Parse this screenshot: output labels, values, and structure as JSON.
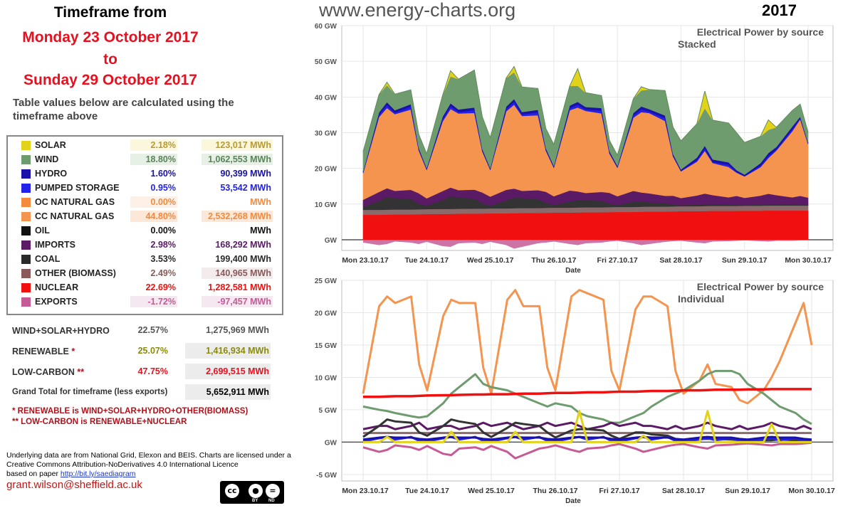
{
  "header": {
    "timeframe_label": "Timeframe from",
    "start_date": "Monday 23 October 2017",
    "to_label": "to",
    "end_date": "Sunday 29 October 2017",
    "subtitle": "Table values below are calculated using the timeframe above",
    "website": "www.energy-charts.org",
    "year": "2017"
  },
  "legend": [
    {
      "name": "SOLAR",
      "pct": "2.18%",
      "mwh": "123,017 MWh",
      "color": "#e3d21a",
      "pct_color": "#b89a30",
      "pct_bg": "#fbf7dd",
      "mwh_color": "#b89a30",
      "mwh_bg": "#fbf7dd"
    },
    {
      "name": "WIND",
      "pct": "18.80%",
      "mwh": "1,062,553 MWh",
      "color": "#6e9c6f",
      "pct_color": "#5a845b",
      "pct_bg": "#e6f0e4",
      "mwh_color": "#5a845b",
      "mwh_bg": "#e6f0e4"
    },
    {
      "name": "HYDRO",
      "pct": "1.60%",
      "mwh": "90,399 MWh",
      "color": "#1a12a8",
      "pct_color": "#1a12a8",
      "pct_bg": "#ffffff",
      "mwh_color": "#1a12a8",
      "mwh_bg": "#ffffff"
    },
    {
      "name": "PUMPED STORAGE",
      "pct": "0.95%",
      "mwh": "53,542 MWh",
      "color": "#2222e8",
      "pct_color": "#2222e8",
      "pct_bg": "#ffffff",
      "mwh_color": "#2222e8",
      "mwh_bg": "#ffffff"
    },
    {
      "name": "OC NATURAL GAS",
      "pct": "0.00%",
      "mwh": "MWh",
      "color": "#f38a3c",
      "pct_color": "#f38a3c",
      "pct_bg": "#fdf0e6",
      "mwh_color": "#f38a3c",
      "mwh_bg": "#ffffff"
    },
    {
      "name": "CC NATURAL GAS",
      "pct": "44.80%",
      "mwh": "2,532,268 MWh",
      "color": "#f5944e",
      "pct_color": "#f38a3c",
      "pct_bg": "#fde7d6",
      "mwh_color": "#f38a3c",
      "mwh_bg": "#fde7d6"
    },
    {
      "name": "OIL",
      "pct": "0.00%",
      "mwh": "MWh",
      "color": "#111111",
      "pct_color": "#111111",
      "pct_bg": "#ffffff",
      "mwh_color": "#111111",
      "mwh_bg": "#ffffff"
    },
    {
      "name": "IMPORTS",
      "pct": "2.98%",
      "mwh": "168,292 MWh",
      "color": "#5a1a66",
      "pct_color": "#5a1a66",
      "pct_bg": "#ffffff",
      "mwh_color": "#5a1a66",
      "mwh_bg": "#ffffff"
    },
    {
      "name": "COAL",
      "pct": "3.53%",
      "mwh": "199,400 MWh",
      "color": "#2a2a2a",
      "pct_color": "#2a2a2a",
      "pct_bg": "#ffffff",
      "mwh_color": "#2a2a2a",
      "mwh_bg": "#ffffff"
    },
    {
      "name": "OTHER (BIOMASS)",
      "pct": "2.49%",
      "mwh": "140,965 MWh",
      "color": "#8a5a5a",
      "pct_color": "#8a5a5a",
      "pct_bg": "#ffffff",
      "mwh_color": "#8a5a5a",
      "mwh_bg": "#f3ecec"
    },
    {
      "name": "NUCLEAR",
      "pct": "22.69%",
      "mwh": "1,282,581 MWh",
      "color": "#f01010",
      "pct_color": "#f01010",
      "pct_bg": "#ffffff",
      "mwh_color": "#f01010",
      "mwh_bg": "#ffffff"
    },
    {
      "name": "EXPORTS",
      "pct": "-1.72%",
      "mwh": "-97,457 MWh",
      "color": "#c65a96",
      "pct_color": "#c65a96",
      "pct_bg": "#f6e8f0",
      "mwh_color": "#c65a96",
      "mwh_bg": "#f6e8f0"
    }
  ],
  "summary": [
    {
      "name": "WIND+SOLAR+HYDRO",
      "star": "",
      "pct": "22.57%",
      "mwh": "1,275,969 MWh",
      "pct_color": "#555555",
      "mwh_color": "#555555"
    },
    {
      "name": "RENEWABLE",
      "star": "*",
      "pct": "25.07%",
      "mwh": "1,416,934 MWh",
      "pct_color": "#8a8a10",
      "mwh_color": "#8a8a10"
    },
    {
      "name": "LOW-CARBON",
      "star": "**",
      "pct": "47.75%",
      "mwh": "2,699,515 MWh",
      "pct_color": "#e8101e",
      "mwh_color": "#e8101e"
    },
    {
      "name": "Grand Total for timeframe (less exports)",
      "star": "",
      "pct": "",
      "mwh": "5,652,911 MWh",
      "pct_color": "#000000",
      "mwh_color": "#000000"
    }
  ],
  "notes": {
    "renewable": "* RENEWABLE is WIND+SOLAR+HYDRO+OTHER(BIOMASS)",
    "low_carbon": "** LOW-CARBON is RENEWABLE+NUCLEAR"
  },
  "credits": {
    "line1": "Underlying data are from National Grid, Elexon and BEIS. Charts are licensed under a",
    "line2": "Creative Commons Attribution-NoDerivatives 4.0 International Licence",
    "line3_prefix": "based on paper ",
    "link": "http://bit.ly/saediagram",
    "email": "grant.wilson@sheffield.ac.uk",
    "cc_by": "BY",
    "cc_nd": "ND"
  },
  "chart_data": [
    {
      "type": "area",
      "title": "Electrical Power by source",
      "subtitle": "Stacked",
      "xlabel": "Date",
      "ylabel": "",
      "ylim": [
        -3,
        60
      ],
      "yticks": [
        0,
        10,
        20,
        30,
        40,
        50,
        60
      ],
      "ytick_labels": [
        "GW",
        "10 GW",
        "20 GW",
        "30 GW",
        "40 GW",
        "50 GW",
        "60 GW"
      ],
      "x_range_days": [
        0,
        7
      ],
      "xticks": [
        "Mon 23.10.17",
        "Tue 24.10.17",
        "Wed 25.10.17",
        "Thu 26.10.17",
        "Fri 27.10.17",
        "Sat 28.10.17",
        "Sun 29.10.17",
        "Mon 30.10.17"
      ],
      "stack_order": [
        "NUCLEAR",
        "OTHER (BIOMASS)",
        "COAL",
        "IMPORTS",
        "CC NATURAL GAS",
        "PUMPED STORAGE",
        "HYDRO",
        "WIND",
        "SOLAR"
      ],
      "negative_series": [
        "EXPORTS"
      ]
    },
    {
      "type": "line",
      "title": "Electrical Power by source",
      "subtitle": "Individual",
      "xlabel": "Date",
      "ylabel": "",
      "ylim": [
        -6,
        25
      ],
      "yticks": [
        -5,
        0,
        5,
        10,
        15,
        20,
        25
      ],
      "ytick_labels": [
        "-5 GW",
        "GW",
        "5 GW",
        "10 GW",
        "15 GW",
        "20 GW",
        "25 GW"
      ],
      "x_range_days": [
        0,
        7
      ],
      "xticks": [
        "Mon 23.10.17",
        "Tue 24.10.17",
        "Wed 25.10.17",
        "Thu 26.10.17",
        "Fri 27.10.17",
        "Sat 28.10.17",
        "Sun 29.10.17",
        "Mon 30.10.17"
      ]
    }
  ],
  "series": {
    "x_days": [
      0,
      0.25,
      0.375,
      0.5,
      0.75,
      0.875,
      1,
      1.25,
      1.375,
      1.5,
      1.75,
      1.875,
      2,
      2.25,
      2.375,
      2.5,
      2.75,
      2.875,
      3,
      3.25,
      3.375,
      3.5,
      3.75,
      3.875,
      4,
      4.25,
      4.375,
      4.5,
      4.75,
      4.875,
      5,
      5.25,
      5.375,
      5.5,
      5.75,
      5.875,
      6,
      6.25,
      6.375,
      6.5,
      6.75,
      6.875,
      7
    ],
    "NUCLEAR": [
      7.0,
      7.0,
      7.05,
      7.1,
      7.1,
      7.15,
      7.2,
      7.25,
      7.25,
      7.3,
      7.35,
      7.35,
      7.4,
      7.4,
      7.45,
      7.5,
      7.5,
      7.55,
      7.6,
      7.6,
      7.65,
      7.7,
      7.7,
      7.75,
      7.8,
      7.8,
      7.85,
      7.9,
      7.9,
      7.95,
      8.0,
      8.0,
      8.05,
      8.1,
      8.1,
      8.1,
      8.15,
      8.15,
      8.2,
      8.2,
      8.2,
      8.2,
      8.2
    ],
    "OTHER (BIOMASS)": [
      1.4,
      1.4,
      1.4,
      1.4,
      1.4,
      1.4,
      1.4,
      1.4,
      1.4,
      1.4,
      1.4,
      1.4,
      1.4,
      1.4,
      1.4,
      1.4,
      1.4,
      1.4,
      1.4,
      1.4,
      1.4,
      1.4,
      1.4,
      1.4,
      1.4,
      1.4,
      1.4,
      1.4,
      1.4,
      1.4,
      1.4,
      1.4,
      1.4,
      1.4,
      1.4,
      1.4,
      1.4,
      1.4,
      1.4,
      1.4,
      1.4,
      1.4,
      1.4
    ],
    "COAL": [
      0.8,
      2.5,
      3.5,
      3.2,
      3.0,
      1.5,
      1.0,
      2.5,
      3.5,
      3.2,
      2.8,
      1.5,
      0.8,
      2.2,
      3.0,
      2.8,
      2.5,
      1.5,
      0.7,
      1.8,
      2.0,
      2.0,
      1.8,
      1.0,
      0.5,
      1.5,
      1.5,
      1.2,
      1.0,
      0.5,
      0.3,
      0.5,
      0.5,
      0.5,
      0.4,
      0.3,
      0.2,
      0.3,
      0.3,
      0.4,
      0.3,
      0.2,
      0.2
    ],
    "IMPORTS": [
      2.0,
      2.5,
      2.5,
      2.0,
      2.5,
      3.0,
      2.0,
      2.5,
      2.5,
      2.0,
      2.5,
      3.0,
      2.5,
      3.0,
      2.5,
      2.0,
      2.5,
      3.0,
      2.5,
      3.0,
      2.5,
      2.0,
      2.5,
      3.0,
      2.5,
      3.0,
      2.5,
      2.5,
      2.0,
      2.5,
      2.0,
      2.5,
      3.0,
      2.5,
      2.0,
      2.5,
      2.0,
      2.5,
      3.0,
      2.5,
      2.0,
      2.5,
      2.0
    ],
    "CC NATURAL GAS": [
      7.5,
      21.0,
      22.5,
      21.5,
      22.5,
      12.0,
      8.0,
      19.5,
      22.0,
      21.5,
      21.5,
      11.5,
      7.5,
      22.0,
      23.5,
      21.0,
      21.0,
      11.5,
      8.0,
      22.5,
      23.5,
      23.0,
      22.0,
      11.0,
      8.0,
      20.5,
      22.5,
      22.5,
      21.0,
      11.0,
      7.5,
      9.5,
      12.0,
      9.0,
      8.5,
      6.5,
      6.0,
      8.0,
      10.0,
      12.5,
      18.5,
      21.5,
      15.0
    ],
    "PUMPED STORAGE": [
      0.1,
      0.6,
      0.8,
      0.4,
      0.8,
      0.2,
      0.1,
      0.6,
      0.8,
      0.4,
      0.8,
      0.2,
      0.1,
      0.6,
      0.8,
      0.4,
      0.8,
      0.2,
      0.1,
      0.6,
      0.8,
      0.4,
      0.8,
      0.2,
      0.1,
      0.6,
      0.8,
      0.4,
      0.8,
      0.2,
      0.1,
      0.4,
      0.6,
      0.3,
      0.6,
      0.2,
      0.1,
      0.4,
      0.6,
      0.3,
      0.6,
      0.2,
      0.1
    ],
    "HYDRO": [
      0.4,
      0.7,
      0.8,
      0.7,
      0.7,
      0.5,
      0.4,
      0.7,
      0.8,
      0.7,
      0.7,
      0.5,
      0.4,
      0.7,
      0.8,
      0.7,
      0.7,
      0.5,
      0.4,
      0.7,
      0.8,
      0.7,
      0.7,
      0.5,
      0.4,
      0.7,
      0.8,
      0.7,
      0.7,
      0.5,
      0.4,
      0.7,
      0.8,
      0.7,
      0.7,
      0.5,
      0.4,
      0.7,
      0.8,
      0.7,
      0.7,
      0.5,
      0.4
    ],
    "WIND": [
      5.5,
      5.0,
      4.8,
      4.5,
      4.0,
      3.8,
      4.0,
      6.0,
      7.5,
      8.5,
      10.5,
      9.0,
      8.5,
      8.0,
      7.5,
      7.0,
      6.0,
      5.5,
      6.0,
      5.5,
      4.5,
      4.0,
      3.5,
      3.0,
      3.0,
      4.0,
      4.5,
      5.5,
      7.0,
      7.5,
      8.0,
      9.5,
      10.5,
      11.0,
      11.0,
      10.5,
      9.0,
      7.5,
      6.5,
      5.5,
      4.5,
      3.5,
      2.8
    ],
    "SOLAR": [
      0,
      0,
      0.8,
      0,
      0,
      0,
      0,
      0,
      1.6,
      0,
      0,
      0,
      0,
      0,
      1.6,
      0,
      0,
      0,
      0,
      0,
      4.8,
      0,
      0,
      0,
      0,
      0,
      1.0,
      0,
      0,
      0,
      0,
      0,
      4.8,
      0,
      0,
      0,
      0,
      0,
      2.8,
      0,
      0,
      0,
      0
    ],
    "EXPORTS": [
      -0.8,
      -1.5,
      -1.2,
      -0.5,
      -0.8,
      -1.2,
      -0.6,
      -1.8,
      -2.0,
      -1.0,
      -0.8,
      -1.2,
      -0.6,
      -1.5,
      -2.5,
      -2.0,
      -1.0,
      -0.8,
      -0.5,
      -1.2,
      -1.5,
      -1.0,
      -0.8,
      -0.5,
      -0.3,
      -1.0,
      -1.5,
      -1.2,
      -0.6,
      -0.4,
      -0.3,
      -0.8,
      -1.0,
      -0.5,
      -0.4,
      -0.3,
      -0.2,
      -0.4,
      -0.5,
      -0.3,
      -0.3,
      -0.2,
      -0.1
    ]
  },
  "colors": {
    "NUCLEAR": "#f01010",
    "OTHER (BIOMASS)": "#8a6a6a",
    "COAL": "#333333",
    "IMPORTS": "#5a1a66",
    "CC NATURAL GAS": "#f5944e",
    "PUMPED STORAGE": "#2222e8",
    "HYDRO": "#1a12a8",
    "WIND": "#6e9c6f",
    "SOLAR": "#e3d21a",
    "EXPORTS": "#c65a96"
  }
}
